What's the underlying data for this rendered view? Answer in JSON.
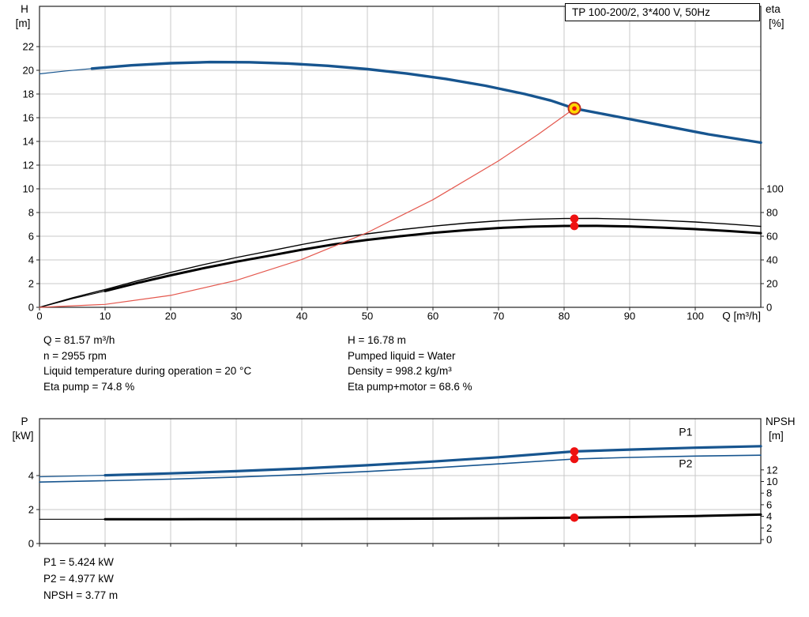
{
  "colors": {
    "curve_blue": "#17558f",
    "curve_black": "#000000",
    "curve_red": "#e4574d",
    "dot_red": "#ee1111",
    "duty_fill": "#ffd800",
    "duty_stroke": "#c03020",
    "grid": "#c9c9c9",
    "frame": "#222222",
    "label_blue": "#2069b0"
  },
  "info_top": {
    "left": [
      "Q = 81.57 m³/h",
      "n = 2955 rpm",
      "Liquid temperature during operation = 20 °C",
      "Eta pump = 74.8 %"
    ],
    "right": [
      "H = 16.78 m",
      "Pumped liquid = Water",
      "Density = 998.2 kg/m³",
      "Eta pump+motor = 68.6 %"
    ]
  },
  "info_bottom": [
    "P1 = 5.424 kW",
    "P2 = 4.977 kW",
    "NPSH = 3.77 m"
  ],
  "chart_data": [
    {
      "type": "line",
      "title": "TP 100-200/2, 3*400 V, 50Hz",
      "xlabel": "Q [m³/h]",
      "ylabel_left": [
        "H",
        "[m]"
      ],
      "ylabel_right": [
        "eta",
        "[%]"
      ],
      "xlim": [
        0,
        110
      ],
      "x_ticks": [
        0,
        10,
        20,
        30,
        40,
        50,
        60,
        70,
        80,
        90,
        100
      ],
      "ylim_left": [
        0,
        25.4
      ],
      "y_ticks_left": [
        0,
        2,
        4,
        6,
        8,
        10,
        12,
        14,
        16,
        18,
        20,
        22
      ],
      "ylim_right": [
        0,
        254
      ],
      "y_ticks_right": [
        0,
        20,
        40,
        60,
        80,
        100
      ],
      "grid": true,
      "series": [
        {
          "name": "QH curve",
          "axis": "left",
          "color": "curve_blue",
          "width": 3.4,
          "thick_from": 8,
          "points": [
            [
              0,
              19.7
            ],
            [
              4,
              19.95
            ],
            [
              8,
              20.15
            ],
            [
              14,
              20.42
            ],
            [
              20,
              20.6
            ],
            [
              26,
              20.69
            ],
            [
              32,
              20.68
            ],
            [
              38,
              20.57
            ],
            [
              44,
              20.38
            ],
            [
              50,
              20.1
            ],
            [
              56,
              19.73
            ],
            [
              62,
              19.27
            ],
            [
              68,
              18.7
            ],
            [
              74,
              18.0
            ],
            [
              78,
              17.45
            ],
            [
              81.57,
              16.78
            ],
            [
              88,
              16.1
            ],
            [
              95,
              15.35
            ],
            [
              102,
              14.6
            ],
            [
              110,
              13.9
            ]
          ]
        },
        {
          "name": "Eta pump",
          "axis": "right",
          "color": "curve_black",
          "width": 1.4,
          "points": [
            [
              0,
              0
            ],
            [
              5,
              8
            ],
            [
              10,
              15
            ],
            [
              15,
              22.5
            ],
            [
              20,
              29.5
            ],
            [
              25,
              36
            ],
            [
              30,
              42
            ],
            [
              35,
              47.5
            ],
            [
              40,
              53
            ],
            [
              45,
              58
            ],
            [
              50,
              62
            ],
            [
              55,
              65.5
            ],
            [
              60,
              68.5
            ],
            [
              65,
              71
            ],
            [
              70,
              73
            ],
            [
              75,
              74.3
            ],
            [
              80,
              74.9
            ],
            [
              85,
              75
            ],
            [
              90,
              74.4
            ],
            [
              95,
              73.3
            ],
            [
              100,
              72
            ],
            [
              105,
              70.3
            ],
            [
              110,
              68.3
            ]
          ]
        },
        {
          "name": "Eta pump+motor",
          "axis": "right",
          "color": "curve_black",
          "width": 3,
          "thick_from": 8,
          "points": [
            [
              0,
              0
            ],
            [
              5,
              7.3
            ],
            [
              10,
              13.7
            ],
            [
              15,
              20.6
            ],
            [
              20,
              27
            ],
            [
              25,
              33
            ],
            [
              30,
              38.5
            ],
            [
              35,
              43.5
            ],
            [
              40,
              48.6
            ],
            [
              45,
              53.2
            ],
            [
              50,
              56.9
            ],
            [
              55,
              60
            ],
            [
              60,
              62.8
            ],
            [
              65,
              65.1
            ],
            [
              70,
              66.9
            ],
            [
              75,
              68.1
            ],
            [
              80,
              68.65
            ],
            [
              85,
              68.7
            ],
            [
              90,
              68.3
            ],
            [
              95,
              67.3
            ],
            [
              100,
              66
            ],
            [
              105,
              64.4
            ],
            [
              110,
              62.6
            ]
          ]
        },
        {
          "name": "System curve",
          "axis": "left",
          "color": "curve_red",
          "width": 1.2,
          "points": [
            [
              0,
              0
            ],
            [
              10,
              0.25
            ],
            [
              20,
              1.01
            ],
            [
              30,
              2.27
            ],
            [
              40,
              4.04
            ],
            [
              50,
              6.31
            ],
            [
              60,
              9.08
            ],
            [
              70,
              12.36
            ],
            [
              76,
              14.57
            ],
            [
              81.57,
              16.78
            ]
          ]
        }
      ],
      "duty_point": {
        "q": 81.57,
        "h": 16.78
      },
      "markers": [
        {
          "q": 81.57,
          "v": 74.8,
          "axis": "right"
        },
        {
          "q": 81.57,
          "v": 68.6,
          "axis": "right"
        }
      ]
    },
    {
      "type": "line",
      "title": "",
      "xlabel": "",
      "ylabel_left": [
        "P",
        "[kW]"
      ],
      "ylabel_right": [
        "NPSH",
        "[m]"
      ],
      "xlim": [
        0,
        110
      ],
      "x_ticks": [
        0,
        10,
        20,
        30,
        40,
        50,
        60,
        70,
        80,
        90,
        100
      ],
      "ylim_left": [
        0,
        7.35
      ],
      "y_ticks_left": [
        0,
        2,
        4
      ],
      "ylim_right": [
        0,
        20.8
      ],
      "y_ticks_right": [
        0,
        2,
        4,
        6,
        8,
        10,
        12
      ],
      "grid": true,
      "series": [
        {
          "name": "P1",
          "axis": "left",
          "color": "curve_blue",
          "width": 3.2,
          "thick_from": 8,
          "points": [
            [
              0,
              3.93
            ],
            [
              10,
              4.02
            ],
            [
              20,
              4.13
            ],
            [
              30,
              4.26
            ],
            [
              40,
              4.42
            ],
            [
              50,
              4.61
            ],
            [
              60,
              4.83
            ],
            [
              70,
              5.08
            ],
            [
              81.57,
              5.424
            ],
            [
              90,
              5.53
            ],
            [
              100,
              5.64
            ],
            [
              110,
              5.73
            ]
          ]
        },
        {
          "name": "P2",
          "axis": "left",
          "color": "curve_blue",
          "width": 1.6,
          "points": [
            [
              0,
              3.62
            ],
            [
              10,
              3.7
            ],
            [
              20,
              3.79
            ],
            [
              30,
              3.91
            ],
            [
              40,
              4.06
            ],
            [
              50,
              4.24
            ],
            [
              60,
              4.45
            ],
            [
              70,
              4.69
            ],
            [
              81.57,
              4.977
            ],
            [
              90,
              5.07
            ],
            [
              100,
              5.15
            ],
            [
              110,
              5.2
            ]
          ]
        },
        {
          "name": "NPSH",
          "axis": "right",
          "color": "curve_black",
          "width": 3,
          "thick_from": 8,
          "points": [
            [
              0,
              3.5
            ],
            [
              10,
              3.5
            ],
            [
              20,
              3.51
            ],
            [
              30,
              3.52
            ],
            [
              40,
              3.54
            ],
            [
              50,
              3.57
            ],
            [
              60,
              3.61
            ],
            [
              70,
              3.67
            ],
            [
              81.57,
              3.77
            ],
            [
              90,
              3.88
            ],
            [
              100,
              4.05
            ],
            [
              110,
              4.3
            ]
          ]
        }
      ],
      "markers": [
        {
          "q": 81.57,
          "v": 5.424,
          "axis": "left"
        },
        {
          "q": 81.57,
          "v": 4.977,
          "axis": "left"
        },
        {
          "q": 81.57,
          "v": 3.77,
          "axis": "right"
        }
      ],
      "series_labels": [
        {
          "text": "P1",
          "q": 97.5,
          "v": 6.35
        },
        {
          "text": "P2",
          "q": 97.5,
          "v": 4.5
        }
      ]
    }
  ]
}
